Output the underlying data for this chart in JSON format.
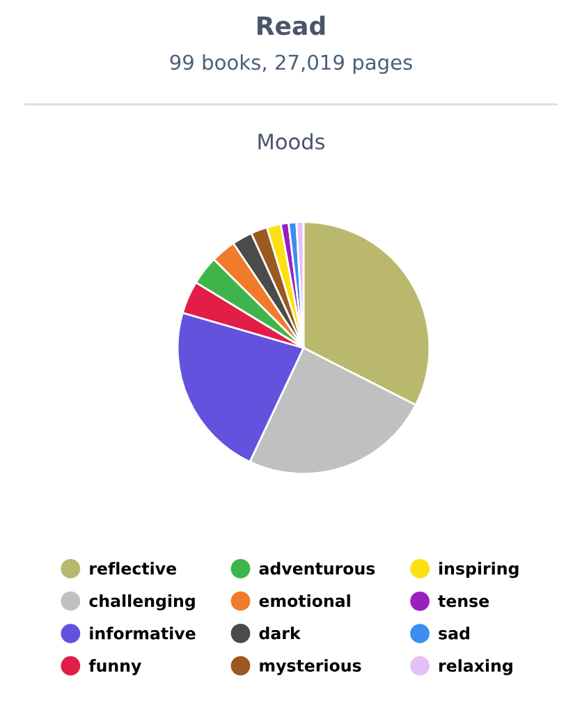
{
  "chart_data": {
    "type": "pie",
    "title": "Read",
    "subtitle": "99 books, 27,019 pages",
    "annotations": [
      "Moods"
    ],
    "categories": [
      "reflective",
      "challenging",
      "informative",
      "funny",
      "adventurous",
      "emotional",
      "dark",
      "mysterious",
      "inspiring",
      "tense",
      "sad",
      "relaxing"
    ],
    "values": [
      32.5,
      24.5,
      22.5,
      4.2,
      3.7,
      3.2,
      2.6,
      2.1,
      1.8,
      1.0,
      1.0,
      0.9
    ],
    "colors": [
      "#bab86c",
      "#c0c0c0",
      "#6352de",
      "#e11d48",
      "#3db54a",
      "#f07b2b",
      "#4b4b4b",
      "#99591f",
      "#fde012",
      "#9b1fbf",
      "#3a8ff0",
      "#e3c0f5"
    ],
    "legend": "bottom"
  }
}
